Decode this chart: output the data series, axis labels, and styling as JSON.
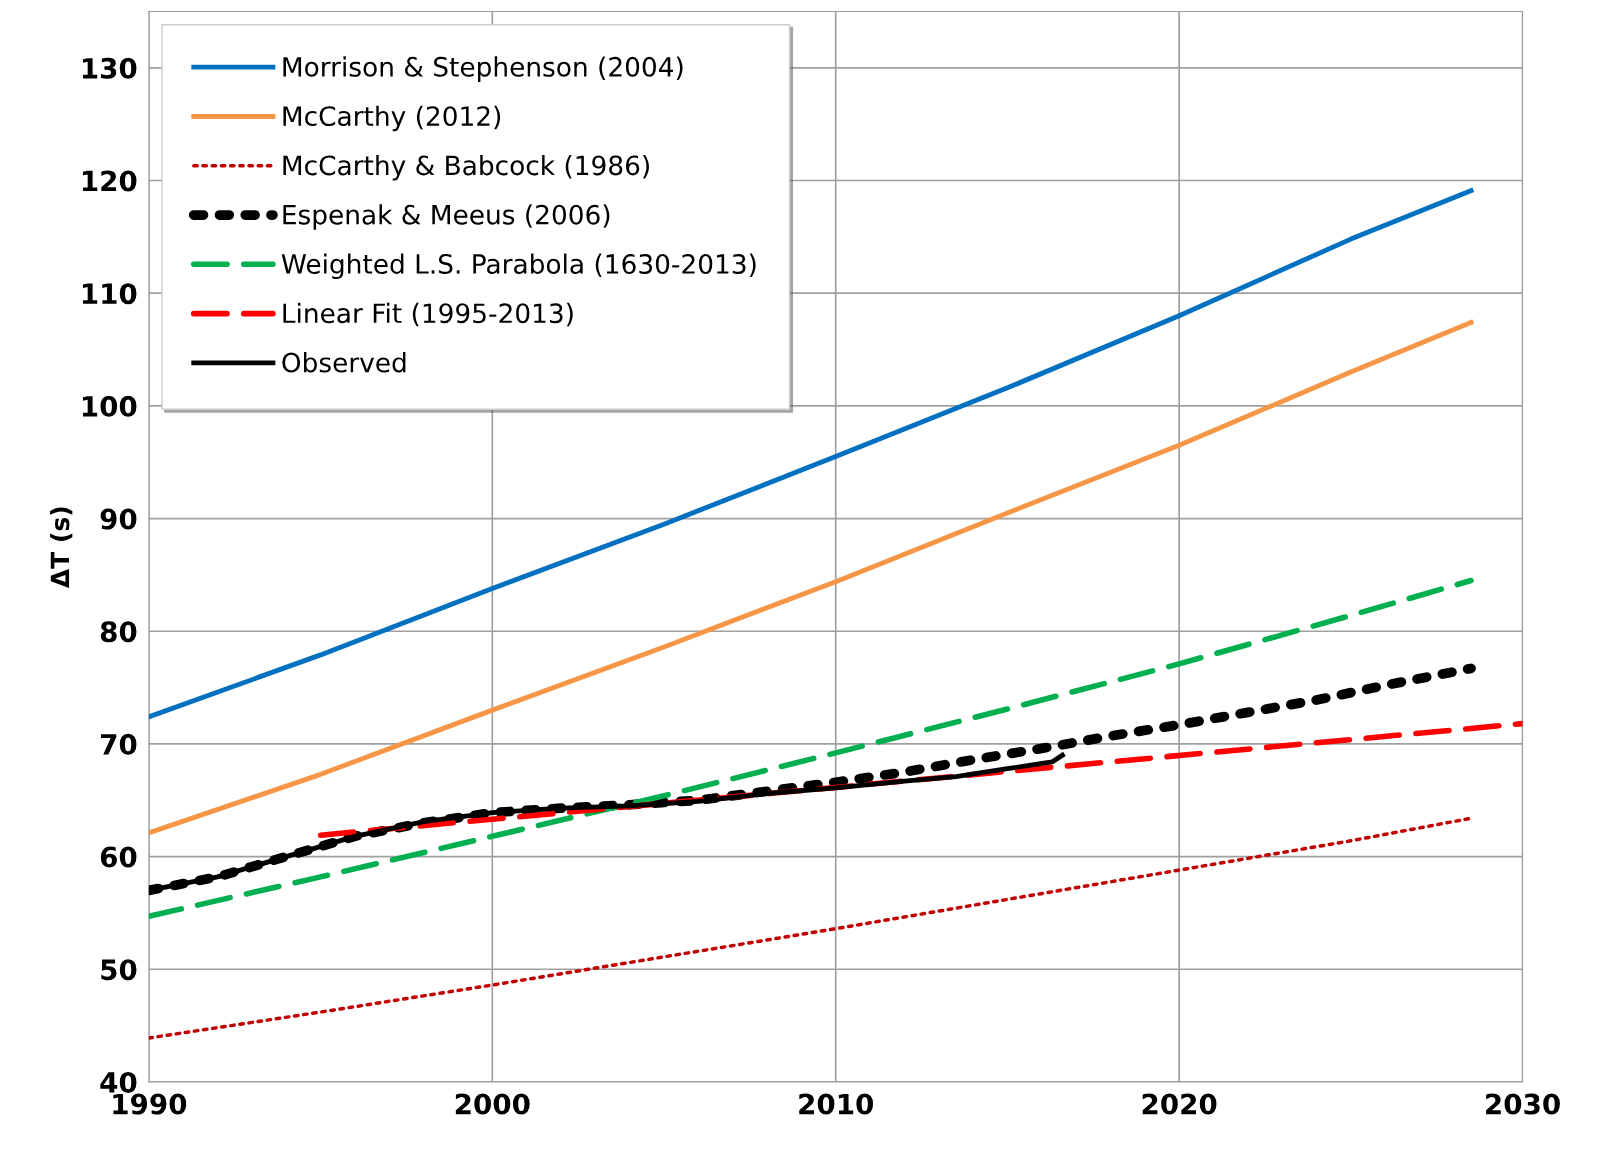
{
  "chart_data": {
    "type": "line",
    "ylabel": "ΔT (s)",
    "xlim": [
      1990,
      2030
    ],
    "xticks": [
      1990,
      2000,
      2010,
      2020,
      2030
    ],
    "ylim": [
      40,
      135
    ],
    "yticks": [
      40,
      50,
      60,
      70,
      80,
      90,
      100,
      110,
      120,
      130
    ],
    "grid": true,
    "legend": "top left",
    "series": [
      {
        "name": "Morrison & Stephenson (2004)",
        "color": "#0070c0",
        "line_style": "solid",
        "x": [
          1990,
          1995,
          2000,
          2005,
          2010,
          2015,
          2020,
          2025,
          2028.5
        ],
        "values": [
          72.4,
          77.9,
          83.8,
          89.5,
          95.5,
          101.6,
          108.0,
          114.8,
          119.1
        ]
      },
      {
        "name": "McCarthy (2012)",
        "color": "#f79646",
        "line_style": "solid",
        "x": [
          1990,
          1995,
          2000,
          2005,
          2010,
          2015,
          2020,
          2025,
          2028.5
        ],
        "values": [
          62.1,
          67.3,
          73.0,
          78.6,
          84.4,
          90.5,
          96.5,
          103.0,
          107.4
        ]
      },
      {
        "name": "McCarthy & Babcock (1986)",
        "color": "#c00000",
        "line_style": "dotted",
        "x": [
          1990,
          1995,
          2000,
          2005,
          2010,
          2015,
          2020,
          2025,
          2028.5
        ],
        "values": [
          43.9,
          46.2,
          48.6,
          51.1,
          53.6,
          56.2,
          58.8,
          61.4,
          63.4
        ]
      },
      {
        "name": "Espenak & Meeus (2006)",
        "color": "#000000",
        "line_style": "dotted",
        "x": [
          1990,
          1992,
          1994,
          1996,
          1998,
          2000,
          2002,
          2004,
          2006,
          2008,
          2010,
          2012,
          2014,
          2016,
          2018,
          2020,
          2022,
          2024,
          2026,
          2028.5
        ],
        "values": [
          57.0,
          58.2,
          60.0,
          61.8,
          63.0,
          63.9,
          64.3,
          64.6,
          65.0,
          65.8,
          66.6,
          67.5,
          68.6,
          69.6,
          70.7,
          71.7,
          72.8,
          73.9,
          75.2,
          76.7
        ]
      },
      {
        "name": "Weighted L.S. Parabola (1630-2013)",
        "color": "#00b050",
        "line_style": "dashed",
        "x": [
          1990,
          1995,
          2000,
          2005,
          2010,
          2015,
          2020,
          2025,
          2028.5
        ],
        "values": [
          54.7,
          58.2,
          61.8,
          65.4,
          69.2,
          73.1,
          77.1,
          81.4,
          84.5
        ]
      },
      {
        "name": "Linear Fit (1995-2013)",
        "color": "#ff0000",
        "line_style": "dashed",
        "x": [
          1995,
          2030
        ],
        "values": [
          61.9,
          71.8
        ]
      },
      {
        "name": "Observed",
        "color": "#000000",
        "line_style": "solid",
        "x": [
          1990,
          1992,
          1994,
          1996,
          1998,
          2000,
          2002,
          2004,
          2006,
          2008,
          2010,
          2012,
          2013.5,
          2015,
          2016.3,
          2016.6
        ],
        "values": [
          57.0,
          58.2,
          60.0,
          61.8,
          63.1,
          63.9,
          64.3,
          64.5,
          64.9,
          65.6,
          66.1,
          66.7,
          67.1,
          67.8,
          68.4,
          69.0
        ]
      }
    ]
  }
}
